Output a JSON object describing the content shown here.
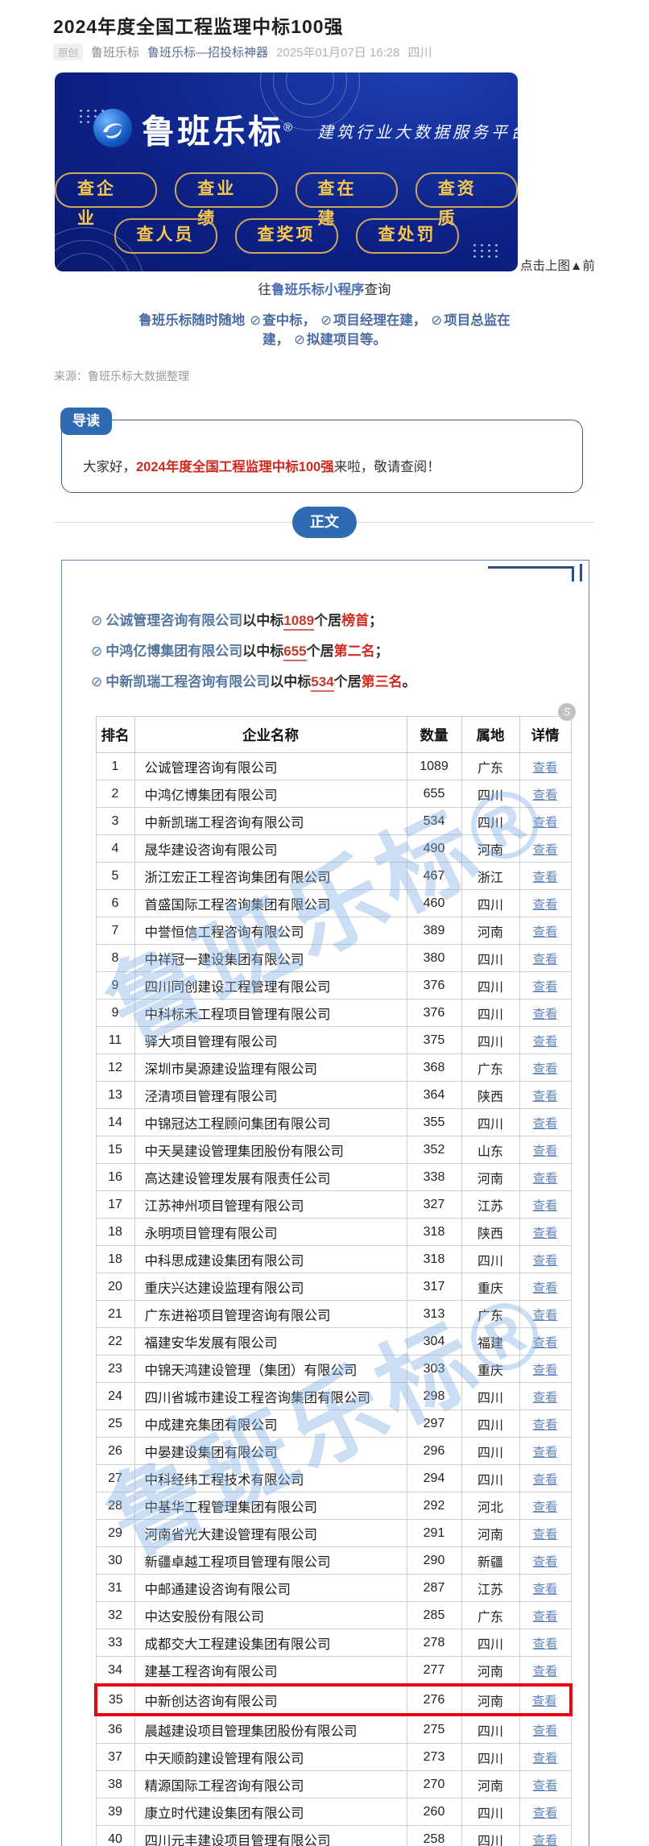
{
  "header": {
    "title": "2024年度全国工程监理中标100强",
    "original_badge": "原创",
    "author": "鲁班乐标",
    "account_name": "鲁班乐标—招投标神器",
    "datetime": "2025年01月07日 16:28",
    "location": "四川"
  },
  "banner": {
    "brand": "鲁班乐标",
    "reg_mark": "®",
    "slogan": "建筑行业大数据服务平台",
    "buttons_row1": [
      "查企业",
      "查业绩",
      "查在建",
      "查资质"
    ],
    "buttons_row2": [
      "查人员",
      "查奖项",
      "查处罚"
    ],
    "bg_color": "#0d2187",
    "gold_color": "#f6c94e"
  },
  "captions": {
    "right_of_banner": "点击上图▲前",
    "below_prefix": "往",
    "below_link": "鲁班乐标小程序",
    "below_suffix": "查询"
  },
  "promo": {
    "prefix": "鲁班乐标随时随地",
    "items": [
      "查中标，",
      "项目经理在建，",
      "项目总监在建，",
      "拟建项目等。"
    ]
  },
  "source_line": "来源：鲁班乐标大数据整理",
  "intro": {
    "badge": "导读",
    "prefix": "大家好，",
    "highlight": "2024年度全国工程监理中标100强",
    "suffix": "来啦，敬请查阅！"
  },
  "body_badge": "正文",
  "bullets": [
    {
      "company": "公诚管理咨询有限公司",
      "mid": "以中标",
      "count": "1089",
      "mid2": "个居",
      "rank": "榜首",
      "tail": "；"
    },
    {
      "company": "中鸿亿博集团有限公司",
      "mid": "以中标",
      "count": "655",
      "mid2": "个居",
      "rank": "第二名",
      "tail": "；"
    },
    {
      "company": "中新凯瑞工程咨询有限公司",
      "mid": "以中标",
      "count": "534",
      "mid2": "个居",
      "rank": "第三名",
      "tail": "。"
    }
  ],
  "table": {
    "headers": [
      "排名",
      "企业名称",
      "数量",
      "属地",
      "详情"
    ],
    "detail_label": "查看",
    "highlight_row_index": 34,
    "rows": [
      [
        "1",
        "公诚管理咨询有限公司",
        "1089",
        "广东"
      ],
      [
        "2",
        "中鸿亿博集团有限公司",
        "655",
        "四川"
      ],
      [
        "3",
        "中新凯瑞工程咨询有限公司",
        "534",
        "四川"
      ],
      [
        "4",
        "晟华建设咨询有限公司",
        "490",
        "河南"
      ],
      [
        "5",
        "浙江宏正工程咨询集团有限公司",
        "467",
        "浙江"
      ],
      [
        "6",
        "首盛国际工程咨询集团有限公司",
        "460",
        "四川"
      ],
      [
        "7",
        "中誉恒信工程咨询有限公司",
        "389",
        "河南"
      ],
      [
        "8",
        "中祥冠一建设集团有限公司",
        "380",
        "四川"
      ],
      [
        "9",
        "四川同创建设工程管理有限公司",
        "376",
        "四川"
      ],
      [
        "9",
        "中科标禾工程项目管理有限公司",
        "376",
        "四川"
      ],
      [
        "11",
        "驿大项目管理有限公司",
        "375",
        "四川"
      ],
      [
        "12",
        "深圳市昊源建设监理有限公司",
        "368",
        "广东"
      ],
      [
        "13",
        "泾清项目管理有限公司",
        "364",
        "陕西"
      ],
      [
        "14",
        "中锦冠达工程顾问集团有限公司",
        "355",
        "四川"
      ],
      [
        "15",
        "中天昊建设管理集团股份有限公司",
        "352",
        "山东"
      ],
      [
        "16",
        "高达建设管理发展有限责任公司",
        "338",
        "河南"
      ],
      [
        "17",
        "江苏神州项目管理有限公司",
        "327",
        "江苏"
      ],
      [
        "18",
        "永明项目管理有限公司",
        "318",
        "陕西"
      ],
      [
        "18",
        "中科思成建设集团有限公司",
        "318",
        "四川"
      ],
      [
        "20",
        "重庆兴达建设监理有限公司",
        "317",
        "重庆"
      ],
      [
        "21",
        "广东进裕项目管理咨询有限公司",
        "313",
        "广东"
      ],
      [
        "22",
        "福建安华发展有限公司",
        "304",
        "福建"
      ],
      [
        "23",
        "中锦天鸿建设管理（集团）有限公司",
        "303",
        "重庆"
      ],
      [
        "24",
        "四川省城市建设工程咨询集团有限公司",
        "298",
        "四川"
      ],
      [
        "25",
        "中成建充集团有限公司",
        "297",
        "四川"
      ],
      [
        "26",
        "中晏建设集团有限公司",
        "296",
        "四川"
      ],
      [
        "27",
        "中科经纬工程技术有限公司",
        "294",
        "四川"
      ],
      [
        "28",
        "中基华工程管理集团有限公司",
        "292",
        "河北"
      ],
      [
        "29",
        "河南省光大建设管理有限公司",
        "291",
        "河南"
      ],
      [
        "30",
        "新疆卓越工程项目管理有限公司",
        "290",
        "新疆"
      ],
      [
        "31",
        "中邮通建设咨询有限公司",
        "287",
        "江苏"
      ],
      [
        "32",
        "中达安股份有限公司",
        "285",
        "广东"
      ],
      [
        "33",
        "成都交大工程建设集团有限公司",
        "278",
        "四川"
      ],
      [
        "34",
        "建基工程咨询有限公司",
        "277",
        "河南"
      ],
      [
        "35",
        "中新创达咨询有限公司",
        "276",
        "河南"
      ],
      [
        "36",
        "晨越建设项目管理集团股份有限公司",
        "275",
        "四川"
      ],
      [
        "37",
        "中天顺韵建设管理有限公司",
        "273",
        "四川"
      ],
      [
        "38",
        "精源国际工程咨询有限公司",
        "270",
        "河南"
      ],
      [
        "39",
        "康立时代建设集团有限公司",
        "260",
        "四川"
      ],
      [
        "40",
        "四川元丰建设项目管理有限公司",
        "258",
        "四川"
      ]
    ]
  },
  "icons": {
    "link": "⊘",
    "float": "S"
  },
  "watermark_text": "鲁班乐标®",
  "colors": {
    "accent_blue": "#2e6bb2",
    "highlight_red": "#e60012",
    "link_blue": "#6189c7",
    "account_blue": "#576b95"
  }
}
